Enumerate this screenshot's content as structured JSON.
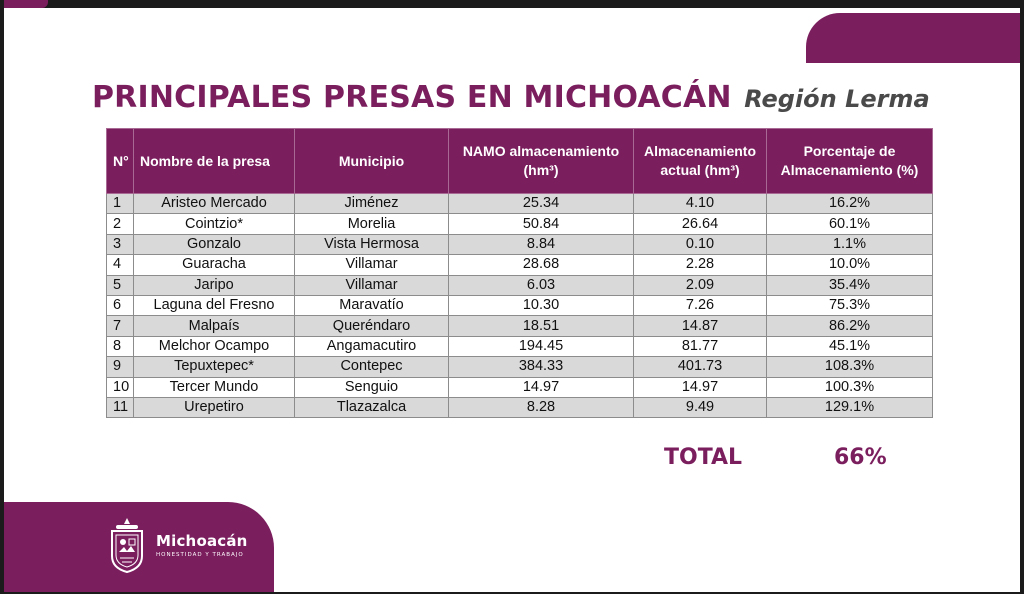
{
  "title": {
    "main": "PRINCIPALES PRESAS EN MICHOACÁN",
    "subtitle": "Región Lerma"
  },
  "table": {
    "headers": [
      "N°",
      "Nombre de la presa",
      "Municipio",
      "NAMO almacenamiento (hm³)",
      "Almacenamiento actual (hm³)",
      "Porcentaje de Almacenamiento (%)"
    ],
    "rows": [
      [
        "1",
        "Aristeo Mercado",
        "Jiménez",
        "25.34",
        "4.10",
        "16.2%"
      ],
      [
        "2",
        "Cointzio*",
        "Morelia",
        "50.84",
        "26.64",
        "60.1%"
      ],
      [
        "3",
        "Gonzalo",
        "Vista Hermosa",
        "8.84",
        "0.10",
        "1.1%"
      ],
      [
        "4",
        "Guaracha",
        "Villamar",
        "28.68",
        "2.28",
        "10.0%"
      ],
      [
        "5",
        "Jaripo",
        "Villamar",
        "6.03",
        "2.09",
        "35.4%"
      ],
      [
        "6",
        "Laguna del Fresno",
        "Maravatío",
        "10.30",
        "7.26",
        "75.3%"
      ],
      [
        "7",
        "Malpaís",
        "Queréndaro",
        "18.51",
        "14.87",
        "86.2%"
      ],
      [
        "8",
        "Melchor Ocampo",
        "Angamacutiro",
        "194.45",
        "81.77",
        "45.1%"
      ],
      [
        "9",
        "Tepuxtepec*",
        "Contepec",
        "384.33",
        "401.73",
        "108.3%"
      ],
      [
        "10",
        "Tercer Mundo",
        "Senguio",
        "14.97",
        "14.97",
        "100.3%"
      ],
      [
        "11",
        "Urepetiro",
        "Tlazazalca",
        "8.28",
        "9.49",
        "129.1%"
      ]
    ]
  },
  "total": {
    "label": "TOTAL",
    "value": "66%"
  },
  "logo": {
    "name": "Michoacán",
    "tagline": "HONESTIDAD Y TRABAJO",
    "icon": "coat-of-arms-icon"
  },
  "colors": {
    "brand": "#7b1e5e",
    "row_shade": "#d9d9d9"
  }
}
